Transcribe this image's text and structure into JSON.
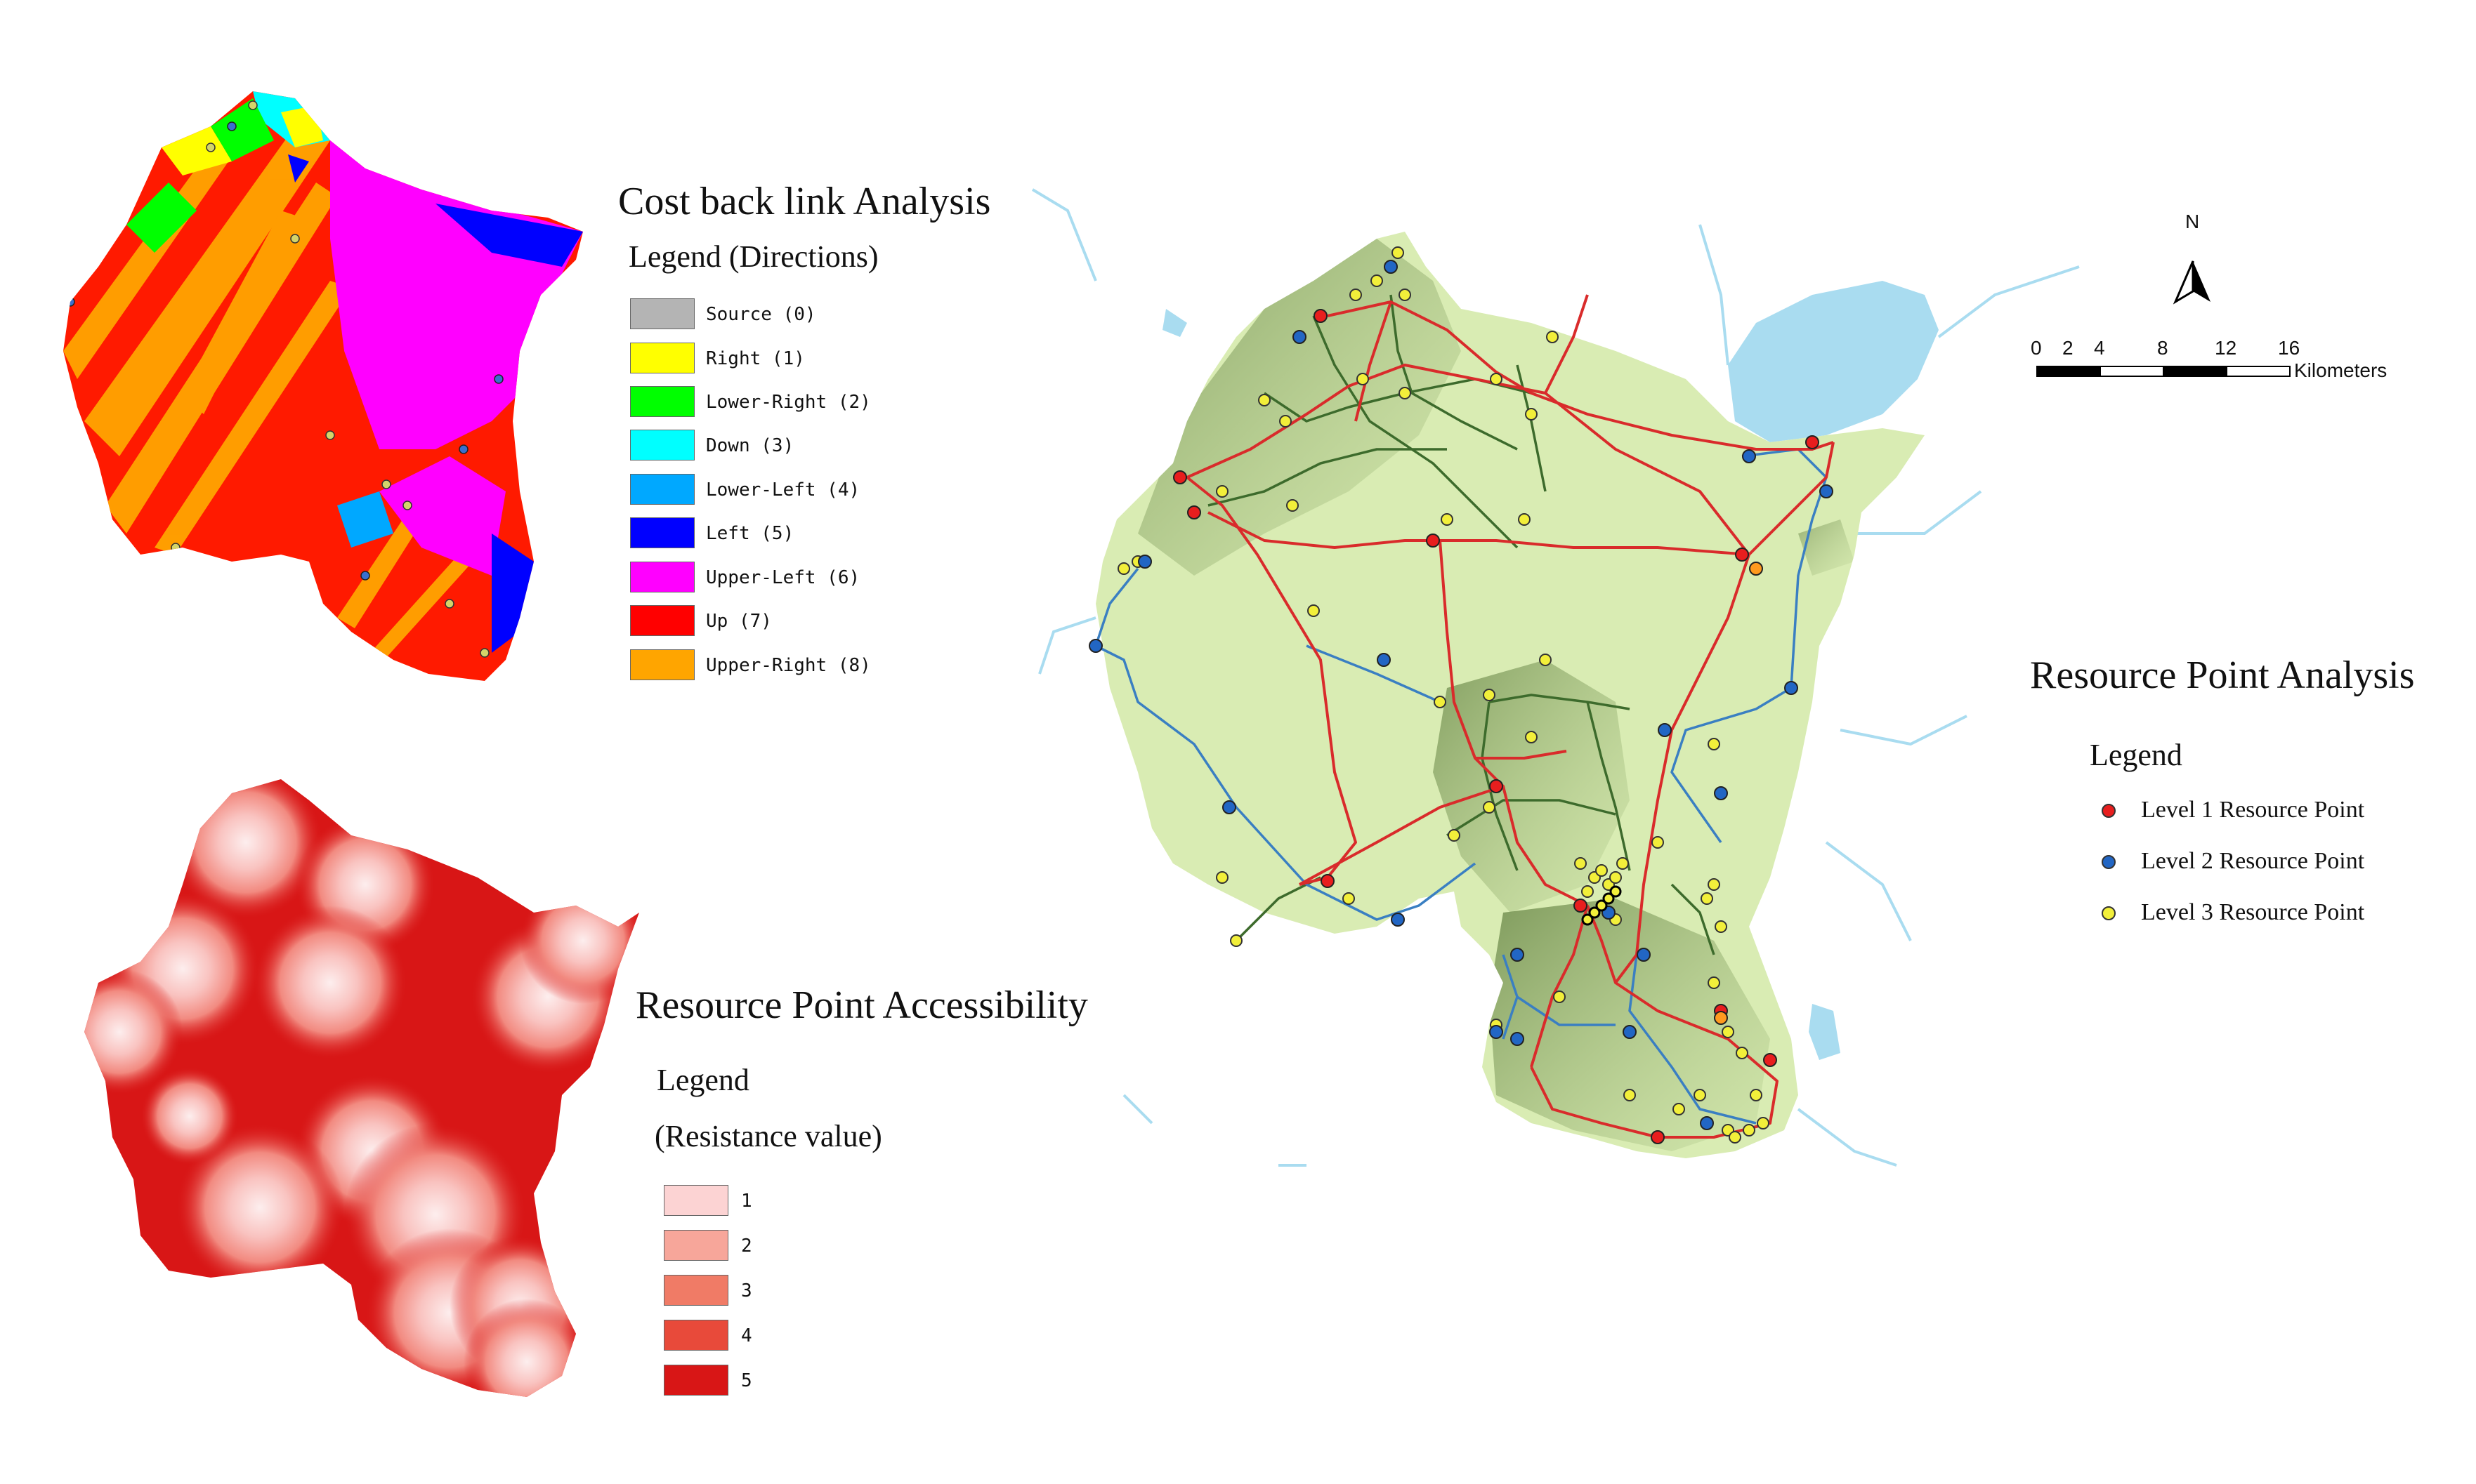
{
  "cost_panel": {
    "title": "Cost back link Analysis",
    "legend_title": "Legend (Directions)",
    "legend": [
      {
        "label": "Source (0)",
        "color": "#b4b4b4"
      },
      {
        "label": "Right (1)",
        "color": "#ffff00"
      },
      {
        "label": "Lower-Right (2)",
        "color": "#00ff00"
      },
      {
        "label": "Down (3)",
        "color": "#00ffff"
      },
      {
        "label": "Lower-Left (4)",
        "color": "#00a8ff"
      },
      {
        "label": "Left (5)",
        "color": "#0000ff"
      },
      {
        "label": "Upper-Left (6)",
        "color": "#ff00ff"
      },
      {
        "label": "Up (7)",
        "color": "#ff0000"
      },
      {
        "label": "Upper-Right (8)",
        "color": "#ffa500"
      }
    ]
  },
  "accessibility_panel": {
    "title": "Resource Point Accessibility",
    "legend_title": "Legend",
    "legend_subtitle": "(Resistance value)",
    "legend": [
      {
        "label": "1",
        "color": "#fcd3d3"
      },
      {
        "label": "2",
        "color": "#f7a69a"
      },
      {
        "label": "3",
        "color": "#f07b66"
      },
      {
        "label": "4",
        "color": "#e84a3a"
      },
      {
        "label": "5",
        "color": "#d81616"
      }
    ]
  },
  "resource_panel": {
    "title": "Resource Point Analysis",
    "legend_title": "Legend",
    "legend": [
      {
        "label": "Level 1 Resource Point",
        "color": "#e81e1e"
      },
      {
        "label": "Level 2 Resource Point",
        "color": "#2266c4"
      },
      {
        "label": "Level 3 Resource Point",
        "color": "#f2ef3a"
      }
    ]
  },
  "north_arrow": {
    "label": "N"
  },
  "scale_bar": {
    "ticks": [
      "0",
      "2",
      "4",
      "8",
      "12",
      "16"
    ],
    "unit": "Kilometers"
  },
  "colors": {
    "water": "#a9dcf0",
    "land": "#d9ecb3",
    "road_level1": "#d92b2b",
    "road_level2": "#3a7fc2",
    "road_level3": "#3d6b2c"
  }
}
